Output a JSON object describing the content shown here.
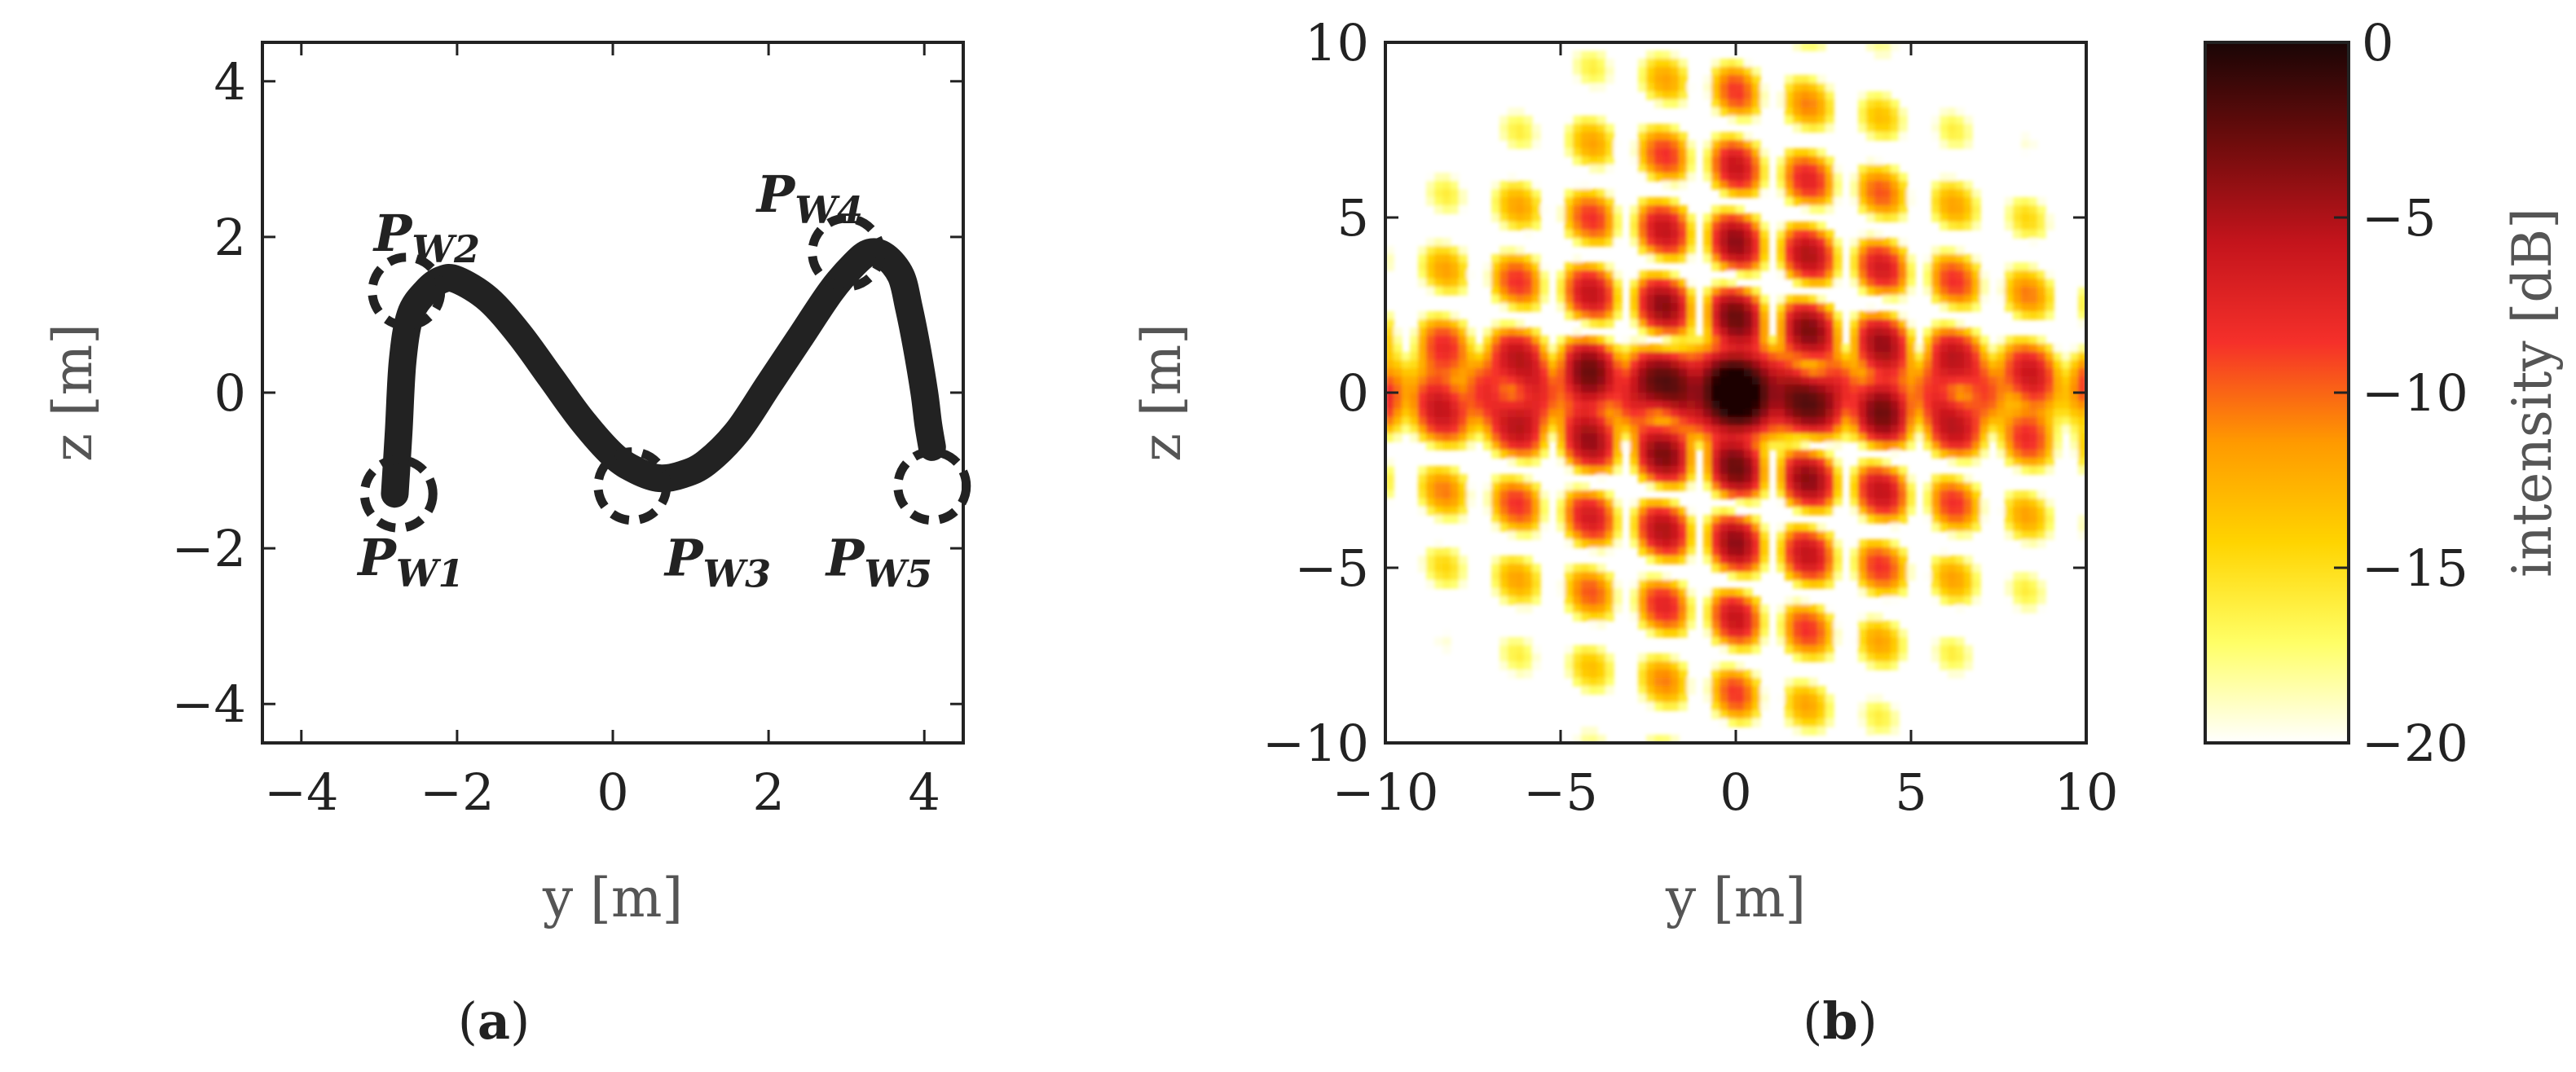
{
  "chart_data": [
    {
      "type": "line",
      "panel": "a",
      "caption": "a",
      "title": "",
      "xlabel": "y [m]",
      "ylabel": "z [m]",
      "xlim": [
        -4.5,
        4.5
      ],
      "ylim": [
        -4.5,
        4.5
      ],
      "x_ticks": [
        -4,
        -2,
        0,
        2,
        4
      ],
      "y_ticks": [
        -4,
        -2,
        0,
        2,
        4
      ],
      "x_tick_labels": [
        "−4",
        "−2",
        "0",
        "2",
        "4"
      ],
      "y_tick_labels": [
        "−4",
        "−2",
        "0",
        "2",
        "4"
      ],
      "grid": false,
      "series": [
        {
          "name": "trajectory",
          "color": "#222222",
          "x": [
            -2.8,
            -2.75,
            -2.7,
            -2.6,
            -2.4,
            -2.2,
            -2.0,
            -1.6,
            -1.2,
            -0.8,
            -0.4,
            0.0,
            0.3,
            0.6,
            0.9,
            1.2,
            1.6,
            2.0,
            2.4,
            2.8,
            3.1,
            3.3,
            3.5,
            3.7,
            3.8,
            3.9,
            4.0,
            4.05,
            4.1
          ],
          "y": [
            -1.3,
            -0.5,
            0.4,
            1.0,
            1.3,
            1.45,
            1.45,
            1.2,
            0.75,
            0.2,
            -0.35,
            -0.8,
            -1.0,
            -1.1,
            -1.05,
            -0.9,
            -0.5,
            0.1,
            0.7,
            1.3,
            1.65,
            1.8,
            1.75,
            1.5,
            1.1,
            0.6,
            0.0,
            -0.4,
            -0.7
          ]
        }
      ],
      "waypoints": [
        {
          "name": "P",
          "sub": "W1",
          "y": -2.75,
          "z": -1.3
        },
        {
          "name": "P",
          "sub": "W2",
          "y": -2.65,
          "z": 1.3
        },
        {
          "name": "P",
          "sub": "W3",
          "y": 0.25,
          "z": -1.2
        },
        {
          "name": "P",
          "sub": "W4",
          "y": 3.0,
          "z": 1.8
        },
        {
          "name": "P",
          "sub": "W5",
          "y": 4.1,
          "z": -1.2
        }
      ]
    },
    {
      "type": "heatmap",
      "panel": "b",
      "caption": "b",
      "title": "",
      "xlabel": "y [m]",
      "ylabel": "z [m]",
      "xlim": [
        -10,
        10
      ],
      "ylim": [
        -10,
        10
      ],
      "x_ticks": [
        -10,
        -5,
        0,
        5,
        10
      ],
      "y_ticks": [
        -10,
        -5,
        0,
        5,
        10
      ],
      "x_tick_labels": [
        "−10",
        "−5",
        "0",
        "5",
        "10"
      ],
      "y_tick_labels": [
        "−10",
        "−5",
        "0",
        "5",
        "10"
      ],
      "grid": false,
      "peak": {
        "y": 0,
        "z": 0,
        "value_db": 0
      },
      "colorbar": {
        "label": "intensity [dB]",
        "range": [
          -20,
          0
        ],
        "ticks": [
          0,
          -5,
          -10,
          -15,
          -20
        ],
        "tick_labels": [
          "0",
          "−5",
          "−10",
          "−15",
          "−20"
        ],
        "colors": [
          "#ffffff",
          "#ffff66",
          "#ffd400",
          "#ff9a00",
          "#f5302a",
          "#c4141c",
          "#6e0c0c",
          "#1a0505"
        ]
      }
    }
  ]
}
